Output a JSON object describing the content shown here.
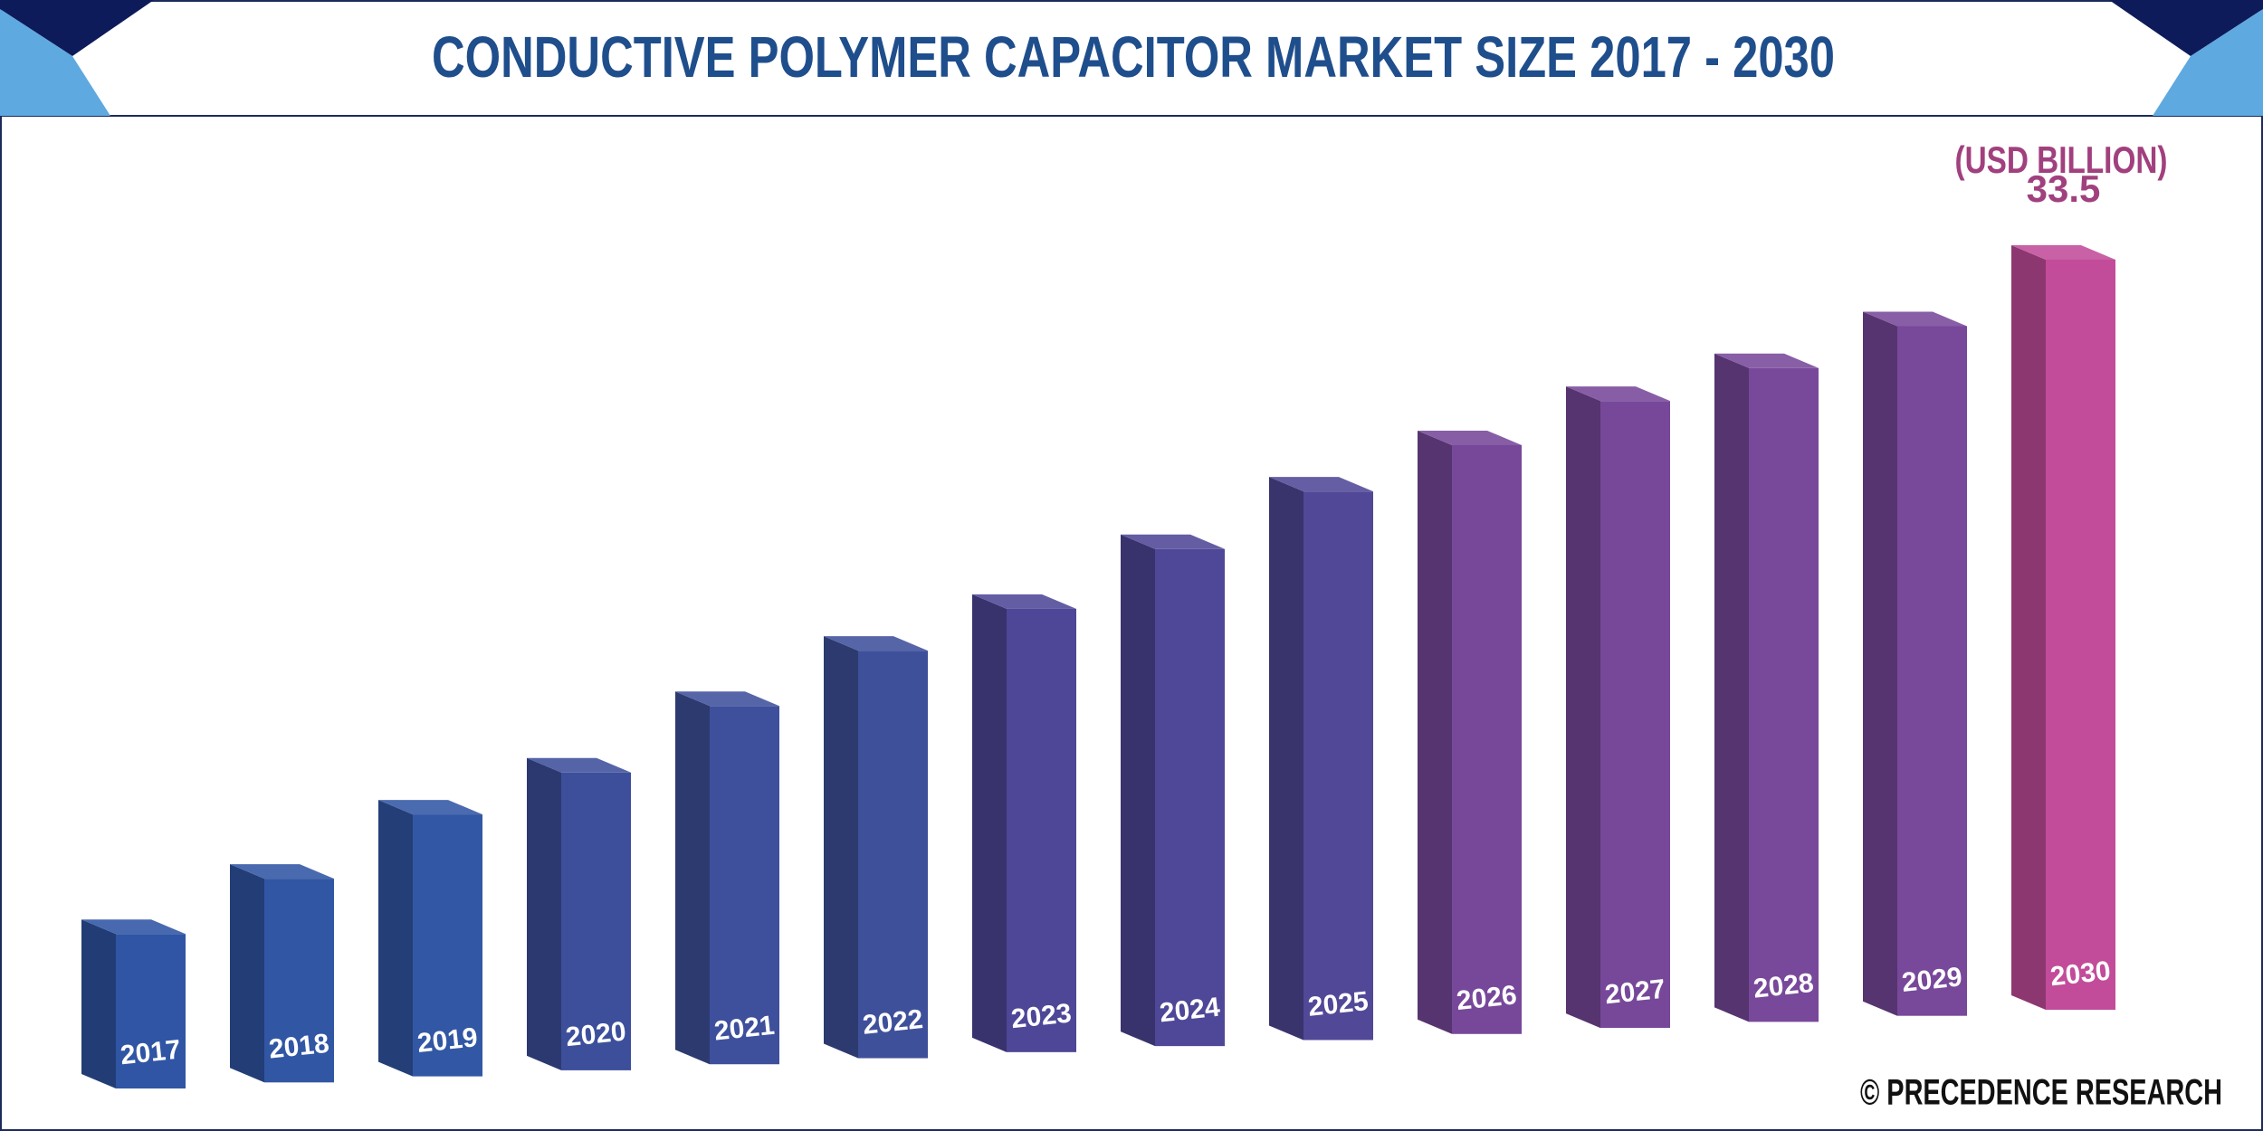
{
  "chart_data": {
    "type": "bar3d",
    "title": "CONDUCTIVE POLYMER CAPACITOR MARKET SIZE 2017 - 2030",
    "unit": "(USD BILLION)",
    "source": "© PRECEDENCE RESEARCH",
    "categories": [
      "2017",
      "2018",
      "2019",
      "2020",
      "2021",
      "2022",
      "2023",
      "2024",
      "2025",
      "2026",
      "2027",
      "2028",
      "2029",
      "2030"
    ],
    "values": [
      6.9,
      9.1,
      11.7,
      13.3,
      16.0,
      18.2,
      19.8,
      22.2,
      24.5,
      26.3,
      28.0,
      29.2,
      30.8,
      33.5
    ],
    "colors": [
      "#2f55a4",
      "#3156a4",
      "#3257a5",
      "#3d4f9b",
      "#3e509c",
      "#3f509b",
      "#4e4797",
      "#4f4797",
      "#514898",
      "#77489a",
      "#77489a",
      "#78489a",
      "#78489a",
      "#c24c9a"
    ],
    "ylim": [
      0,
      33.5
    ]
  }
}
